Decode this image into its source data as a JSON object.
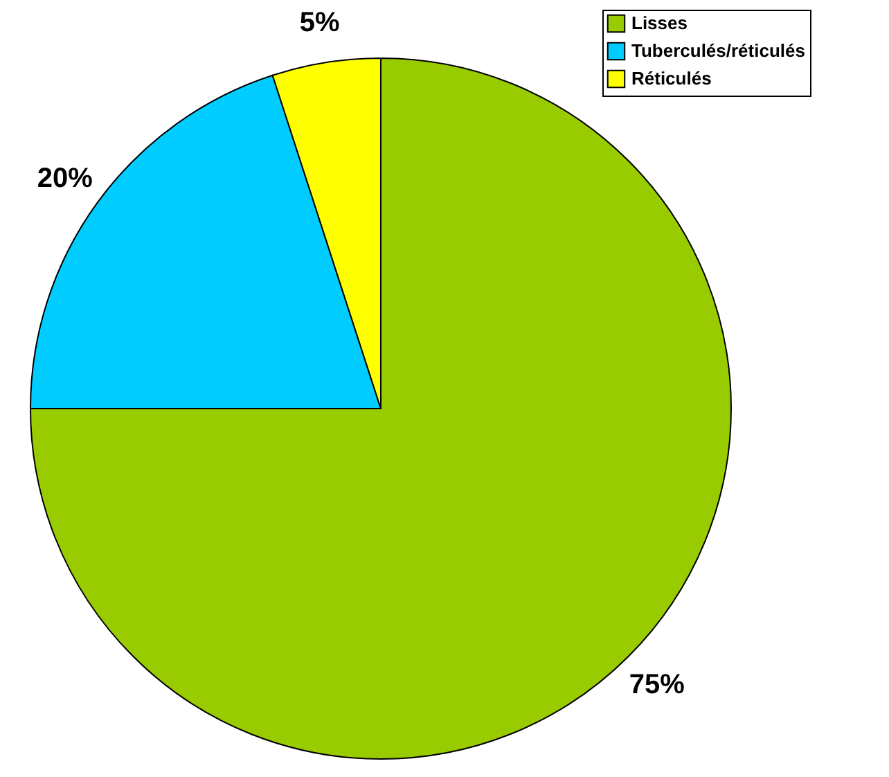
{
  "chart_data": {
    "type": "pie",
    "categories": [
      "Lisses",
      "Tuberculés/réticulés",
      "Réticulés"
    ],
    "values": [
      75,
      20,
      5
    ],
    "colors": [
      "#99cc00",
      "#00ccff",
      "#ffff00"
    ],
    "value_labels": [
      "75%",
      "20%",
      "5%"
    ],
    "legend": "top right"
  }
}
